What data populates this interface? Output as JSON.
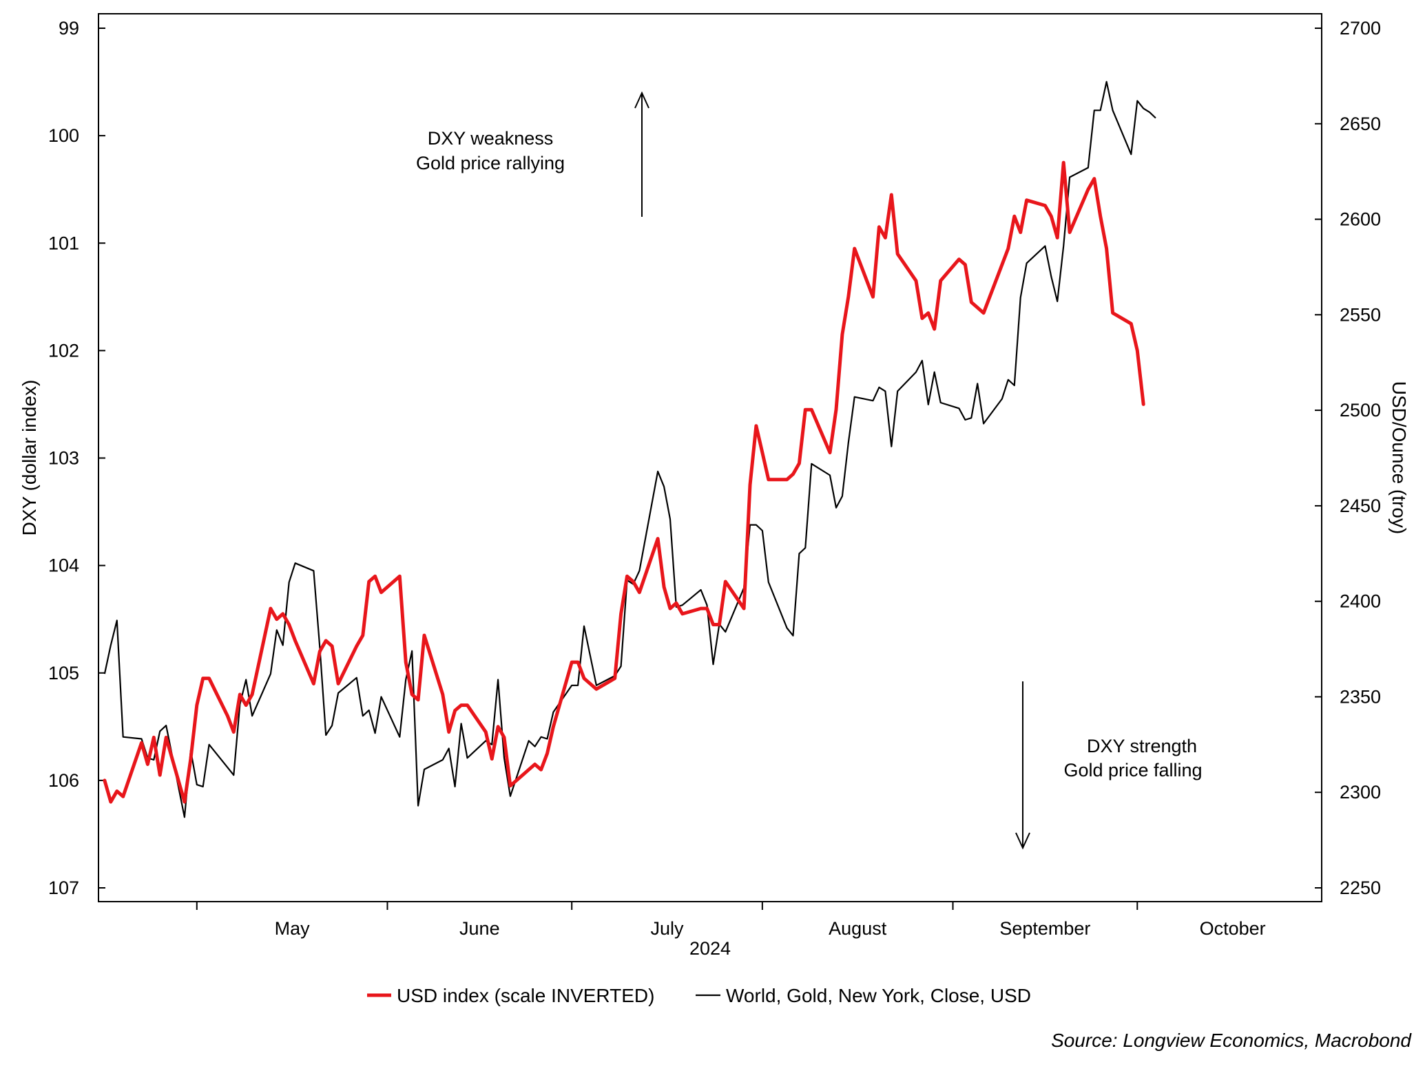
{
  "chart_data": {
    "type": "line",
    "left_axis": {
      "label": "DXY (dollar index)",
      "range": [
        99,
        107
      ],
      "inverted": true,
      "ticks": [
        99,
        100,
        101,
        102,
        103,
        104,
        105,
        106,
        107
      ]
    },
    "right_axis": {
      "label": "USD/Ounce (troy)",
      "range": [
        2250,
        2700
      ],
      "ticks": [
        2250,
        2300,
        2350,
        2400,
        2450,
        2500,
        2550,
        2600,
        2650,
        2700
      ]
    },
    "x_axis": {
      "months": [
        "May",
        "June",
        "July",
        "August",
        "September",
        "October"
      ],
      "year": "2024",
      "range": [
        "2024-04-15",
        "2024-10-31"
      ]
    },
    "grid": false,
    "legend_position": "bottom",
    "source": "Source: Longview Economics, Macrobond",
    "annotations": [
      {
        "lines": [
          "DXY weakness",
          "Gold price rallying"
        ],
        "arrow": "up"
      },
      {
        "lines": [
          "DXY strength",
          "Gold price falling"
        ],
        "arrow": "down"
      }
    ],
    "series": [
      {
        "name": "USD index (scale INVERTED)",
        "axis": "left",
        "color": "#e8161b",
        "points": [
          [
            "2024-04-16",
            106.0
          ],
          [
            "2024-04-17",
            106.2
          ],
          [
            "2024-04-18",
            106.1
          ],
          [
            "2024-04-19",
            106.15
          ],
          [
            "2024-04-22",
            105.65
          ],
          [
            "2024-04-23",
            105.85
          ],
          [
            "2024-04-24",
            105.6
          ],
          [
            "2024-04-25",
            105.95
          ],
          [
            "2024-04-26",
            105.6
          ],
          [
            "2024-04-29",
            106.2
          ],
          [
            "2024-04-30",
            105.8
          ],
          [
            "2024-05-01",
            105.3
          ],
          [
            "2024-05-02",
            105.05
          ],
          [
            "2024-05-03",
            105.05
          ],
          [
            "2024-05-06",
            105.4
          ],
          [
            "2024-05-07",
            105.55
          ],
          [
            "2024-05-08",
            105.2
          ],
          [
            "2024-05-09",
            105.3
          ],
          [
            "2024-05-10",
            105.2
          ],
          [
            "2024-05-13",
            104.4
          ],
          [
            "2024-05-14",
            104.5
          ],
          [
            "2024-05-15",
            104.45
          ],
          [
            "2024-05-16",
            104.55
          ],
          [
            "2024-05-17",
            104.7
          ],
          [
            "2024-05-20",
            105.1
          ],
          [
            "2024-05-21",
            104.8
          ],
          [
            "2024-05-22",
            104.7
          ],
          [
            "2024-05-23",
            104.75
          ],
          [
            "2024-05-24",
            105.1
          ],
          [
            "2024-05-27",
            104.75
          ],
          [
            "2024-05-28",
            104.65
          ],
          [
            "2024-05-29",
            104.15
          ],
          [
            "2024-05-30",
            104.1
          ],
          [
            "2024-05-31",
            104.25
          ],
          [
            "2024-06-03",
            104.1
          ],
          [
            "2024-06-04",
            104.9
          ],
          [
            "2024-06-05",
            105.2
          ],
          [
            "2024-06-06",
            105.25
          ],
          [
            "2024-06-07",
            104.65
          ],
          [
            "2024-06-10",
            105.2
          ],
          [
            "2024-06-11",
            105.55
          ],
          [
            "2024-06-12",
            105.35
          ],
          [
            "2024-06-13",
            105.3
          ],
          [
            "2024-06-14",
            105.3
          ],
          [
            "2024-06-17",
            105.55
          ],
          [
            "2024-06-18",
            105.8
          ],
          [
            "2024-06-19",
            105.5
          ],
          [
            "2024-06-20",
            105.6
          ],
          [
            "2024-06-21",
            106.05
          ],
          [
            "2024-06-24",
            105.9
          ],
          [
            "2024-06-25",
            105.85
          ],
          [
            "2024-06-26",
            105.9
          ],
          [
            "2024-06-27",
            105.75
          ],
          [
            "2024-06-28",
            105.5
          ],
          [
            "2024-07-01",
            104.9
          ],
          [
            "2024-07-02",
            104.9
          ],
          [
            "2024-07-03",
            105.05
          ],
          [
            "2024-07-05",
            105.15
          ],
          [
            "2024-07-08",
            105.05
          ],
          [
            "2024-07-09",
            104.45
          ],
          [
            "2024-07-10",
            104.1
          ],
          [
            "2024-07-11",
            104.15
          ],
          [
            "2024-07-12",
            104.25
          ],
          [
            "2024-07-15",
            103.75
          ],
          [
            "2024-07-16",
            104.2
          ],
          [
            "2024-07-17",
            104.4
          ],
          [
            "2024-07-18",
            104.35
          ],
          [
            "2024-07-19",
            104.45
          ],
          [
            "2024-07-22",
            104.4
          ],
          [
            "2024-07-23",
            104.4
          ],
          [
            "2024-07-24",
            104.55
          ],
          [
            "2024-07-25",
            104.55
          ],
          [
            "2024-07-26",
            104.15
          ],
          [
            "2024-07-29",
            104.4
          ],
          [
            "2024-07-30",
            103.25
          ],
          [
            "2024-07-31",
            102.7
          ],
          [
            "2024-08-01",
            102.95
          ],
          [
            "2024-08-02",
            103.2
          ],
          [
            "2024-08-05",
            103.2
          ],
          [
            "2024-08-06",
            103.15
          ],
          [
            "2024-08-07",
            103.05
          ],
          [
            "2024-08-08",
            102.55
          ],
          [
            "2024-08-09",
            102.55
          ],
          [
            "2024-08-12",
            102.95
          ],
          [
            "2024-08-13",
            102.55
          ],
          [
            "2024-08-14",
            101.85
          ],
          [
            "2024-08-15",
            101.5
          ],
          [
            "2024-08-16",
            101.05
          ],
          [
            "2024-08-19",
            101.5
          ],
          [
            "2024-08-20",
            100.85
          ],
          [
            "2024-08-21",
            100.95
          ],
          [
            "2024-08-22",
            100.55
          ],
          [
            "2024-08-23",
            101.1
          ],
          [
            "2024-08-26",
            101.35
          ],
          [
            "2024-08-27",
            101.7
          ],
          [
            "2024-08-28",
            101.65
          ],
          [
            "2024-08-29",
            101.8
          ],
          [
            "2024-08-30",
            101.35
          ],
          [
            "2024-09-02",
            101.15
          ],
          [
            "2024-09-03",
            101.2
          ],
          [
            "2024-09-04",
            101.55
          ],
          [
            "2024-09-05",
            101.6
          ],
          [
            "2024-09-06",
            101.65
          ],
          [
            "2024-09-09",
            101.2
          ],
          [
            "2024-09-10",
            101.05
          ],
          [
            "2024-09-11",
            100.75
          ],
          [
            "2024-09-12",
            100.9
          ],
          [
            "2024-09-13",
            100.6
          ],
          [
            "2024-09-16",
            100.65
          ],
          [
            "2024-09-17",
            100.75
          ],
          [
            "2024-09-18",
            100.95
          ],
          [
            "2024-09-19",
            100.25
          ],
          [
            "2024-09-20",
            100.9
          ],
          [
            "2024-09-23",
            100.5
          ],
          [
            "2024-09-24",
            100.4
          ],
          [
            "2024-09-25",
            100.75
          ],
          [
            "2024-09-26",
            101.05
          ],
          [
            "2024-09-27",
            101.65
          ],
          [
            "2024-09-30",
            101.75
          ],
          [
            "2024-10-01",
            102.0
          ],
          [
            "2024-10-02",
            102.5
          ]
        ]
      },
      {
        "name": "World, Gold, New York, Close, USD",
        "axis": "right",
        "color": "#000000",
        "points": [
          [
            "2024-04-16",
            2362
          ],
          [
            "2024-04-17",
            2377
          ],
          [
            "2024-04-18",
            2390
          ],
          [
            "2024-04-19",
            2329
          ],
          [
            "2024-04-22",
            2328
          ],
          [
            "2024-04-23",
            2318
          ],
          [
            "2024-04-24",
            2317
          ],
          [
            "2024-04-25",
            2332
          ],
          [
            "2024-04-26",
            2335
          ],
          [
            "2024-04-29",
            2287
          ],
          [
            "2024-04-30",
            2322
          ],
          [
            "2024-05-01",
            2304
          ],
          [
            "2024-05-02",
            2303
          ],
          [
            "2024-05-03",
            2325
          ],
          [
            "2024-05-06",
            2313
          ],
          [
            "2024-05-07",
            2309
          ],
          [
            "2024-05-08",
            2346
          ],
          [
            "2024-05-09",
            2359
          ],
          [
            "2024-05-10",
            2340
          ],
          [
            "2024-05-13",
            2362
          ],
          [
            "2024-05-14",
            2385
          ],
          [
            "2024-05-15",
            2377
          ],
          [
            "2024-05-16",
            2410
          ],
          [
            "2024-05-17",
            2420
          ],
          [
            "2024-05-20",
            2416
          ],
          [
            "2024-05-21",
            2376
          ],
          [
            "2024-05-22",
            2330
          ],
          [
            "2024-05-23",
            2335
          ],
          [
            "2024-05-24",
            2352
          ],
          [
            "2024-05-27",
            2360
          ],
          [
            "2024-05-28",
            2340
          ],
          [
            "2024-05-29",
            2343
          ],
          [
            "2024-05-30",
            2331
          ],
          [
            "2024-05-31",
            2350
          ],
          [
            "2024-06-03",
            2329
          ],
          [
            "2024-06-04",
            2359
          ],
          [
            "2024-06-05",
            2374
          ],
          [
            "2024-06-06",
            2293
          ],
          [
            "2024-06-07",
            2312
          ],
          [
            "2024-06-10",
            2317
          ],
          [
            "2024-06-11",
            2323
          ],
          [
            "2024-06-12",
            2303
          ],
          [
            "2024-06-13",
            2336
          ],
          [
            "2024-06-14",
            2318
          ],
          [
            "2024-06-17",
            2327
          ],
          [
            "2024-06-18",
            2325
          ],
          [
            "2024-06-19",
            2359
          ],
          [
            "2024-06-20",
            2318
          ],
          [
            "2024-06-21",
            2298
          ],
          [
            "2024-06-24",
            2327
          ],
          [
            "2024-06-25",
            2324
          ],
          [
            "2024-06-26",
            2329
          ],
          [
            "2024-06-27",
            2328
          ],
          [
            "2024-06-28",
            2342
          ],
          [
            "2024-07-01",
            2356
          ],
          [
            "2024-07-02",
            2356
          ],
          [
            "2024-07-03",
            2387
          ],
          [
            "2024-07-05",
            2356
          ],
          [
            "2024-07-08",
            2361
          ],
          [
            "2024-07-09",
            2366
          ],
          [
            "2024-07-10",
            2411
          ],
          [
            "2024-07-11",
            2409
          ],
          [
            "2024-07-12",
            2416
          ],
          [
            "2024-07-15",
            2468
          ],
          [
            "2024-07-16",
            2460
          ],
          [
            "2024-07-17",
            2443
          ],
          [
            "2024-07-18",
            2397
          ],
          [
            "2024-07-19",
            2398
          ],
          [
            "2024-07-22",
            2406
          ],
          [
            "2024-07-23",
            2398
          ],
          [
            "2024-07-24",
            2367
          ],
          [
            "2024-07-25",
            2388
          ],
          [
            "2024-07-26",
            2384
          ],
          [
            "2024-07-29",
            2407
          ],
          [
            "2024-07-30",
            2440
          ],
          [
            "2024-07-31",
            2440
          ],
          [
            "2024-08-01",
            2437
          ],
          [
            "2024-08-02",
            2410
          ],
          [
            "2024-08-05",
            2386
          ],
          [
            "2024-08-06",
            2382
          ],
          [
            "2024-08-07",
            2425
          ],
          [
            "2024-08-08",
            2428
          ],
          [
            "2024-08-09",
            2472
          ],
          [
            "2024-08-12",
            2466
          ],
          [
            "2024-08-13",
            2449
          ],
          [
            "2024-08-14",
            2455
          ],
          [
            "2024-08-15",
            2483
          ],
          [
            "2024-08-16",
            2507
          ],
          [
            "2024-08-19",
            2505
          ],
          [
            "2024-08-20",
            2512
          ],
          [
            "2024-08-21",
            2510
          ],
          [
            "2024-08-22",
            2481
          ],
          [
            "2024-08-23",
            2510
          ],
          [
            "2024-08-26",
            2520
          ],
          [
            "2024-08-27",
            2526
          ],
          [
            "2024-08-28",
            2503
          ],
          [
            "2024-08-29",
            2520
          ],
          [
            "2024-08-30",
            2504
          ],
          [
            "2024-09-02",
            2501
          ],
          [
            "2024-09-03",
            2495
          ],
          [
            "2024-09-04",
            2496
          ],
          [
            "2024-09-05",
            2514
          ],
          [
            "2024-09-06",
            2493
          ],
          [
            "2024-09-09",
            2506
          ],
          [
            "2024-09-10",
            2516
          ],
          [
            "2024-09-11",
            2513
          ],
          [
            "2024-09-12",
            2559
          ],
          [
            "2024-09-13",
            2577
          ],
          [
            "2024-09-16",
            2586
          ],
          [
            "2024-09-17",
            2570
          ],
          [
            "2024-09-18",
            2557
          ],
          [
            "2024-09-19",
            2586
          ],
          [
            "2024-09-20",
            2622
          ],
          [
            "2024-09-23",
            2627
          ],
          [
            "2024-09-24",
            2657
          ],
          [
            "2024-09-25",
            2657
          ],
          [
            "2024-09-26",
            2672
          ],
          [
            "2024-09-27",
            2657
          ],
          [
            "2024-09-30",
            2634
          ],
          [
            "2024-10-01",
            2662
          ],
          [
            "2024-10-02",
            2658
          ],
          [
            "2024-10-03",
            2656
          ],
          [
            "2024-10-04",
            2653
          ]
        ]
      }
    ]
  }
}
